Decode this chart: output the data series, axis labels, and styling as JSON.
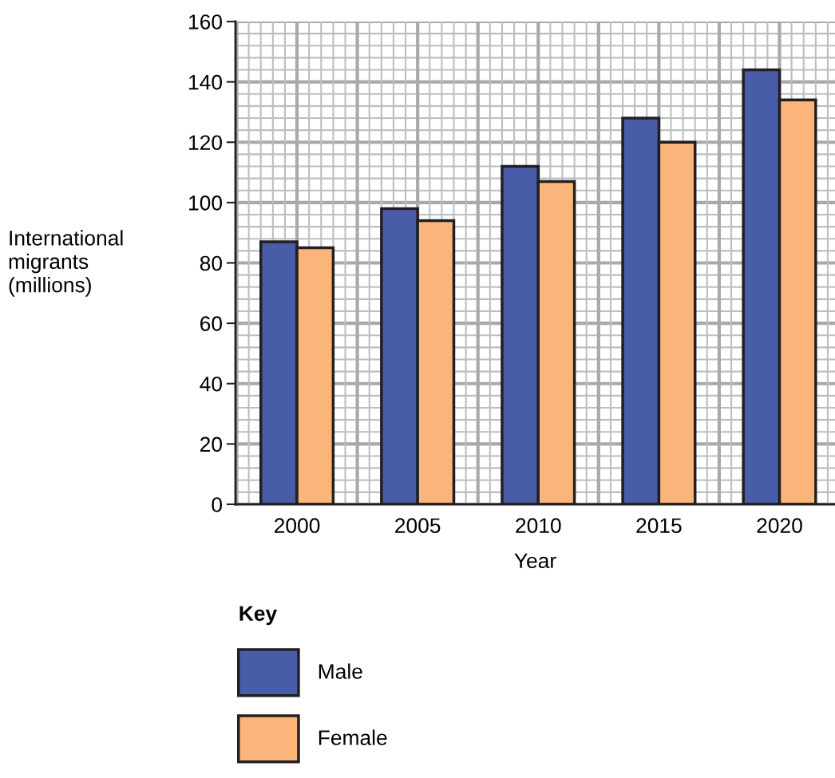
{
  "chart_data": {
    "type": "bar",
    "xlabel": "Year",
    "ylabel": "International\nmigrants\n(millions)",
    "legend_title": "Key",
    "categories": [
      "2000",
      "2005",
      "2010",
      "2015",
      "2020"
    ],
    "series": [
      {
        "name": "Male",
        "color": "#485ca8",
        "values": [
          87,
          98,
          112,
          128,
          144
        ]
      },
      {
        "name": "Female",
        "color": "#fbb479",
        "values": [
          85,
          94,
          107,
          120,
          134
        ]
      }
    ],
    "ylim": [
      0,
      160
    ],
    "yticks": [
      0,
      20,
      40,
      60,
      80,
      100,
      120,
      140,
      160
    ],
    "grid": true,
    "legend": "bottom"
  }
}
